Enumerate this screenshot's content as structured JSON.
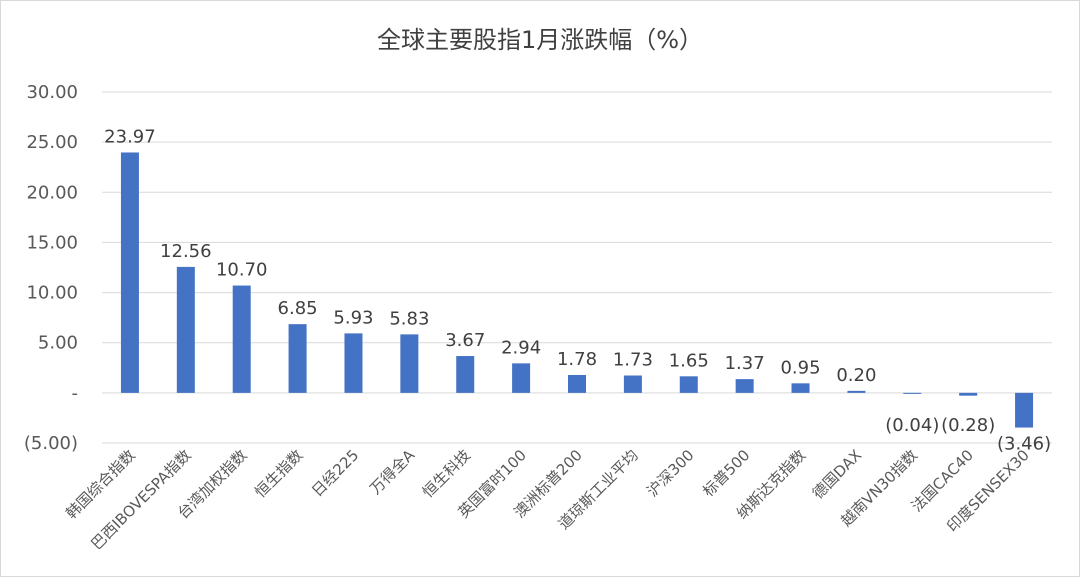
{
  "chart_data": {
    "type": "bar",
    "title": "全球主要股指1月涨跌幅（%）",
    "xlabel": "",
    "ylabel": "",
    "ylim": [
      -5,
      30
    ],
    "yticks": [
      {
        "value": 30,
        "label": "30.00"
      },
      {
        "value": 25,
        "label": "25.00"
      },
      {
        "value": 20,
        "label": "20.00"
      },
      {
        "value": 15,
        "label": "15.00"
      },
      {
        "value": 10,
        "label": "10.00"
      },
      {
        "value": 5,
        "label": "5.00"
      },
      {
        "value": 0,
        "label": "-"
      },
      {
        "value": -5,
        "label": "(5.00)"
      }
    ],
    "grid": true,
    "legend": "none",
    "bar_color": "#4472c4",
    "categories": [
      "韩国综合指数",
      "巴西IBOVESPA指数",
      "台湾加权指数",
      "恒生指数",
      "日经225",
      "万得全A",
      "恒生科技",
      "英国富时100",
      "澳洲标普200",
      "道琼斯工业平均",
      "沪深300",
      "标普500",
      "纳斯达克指数",
      "德国DAX",
      "越南VN30指数",
      "法国CAC40",
      "印度SENSEX30"
    ],
    "values": [
      23.97,
      12.56,
      10.7,
      6.85,
      5.93,
      5.83,
      3.67,
      2.94,
      1.78,
      1.73,
      1.65,
      1.37,
      0.95,
      0.2,
      -0.04,
      -0.28,
      -3.46
    ],
    "data_labels": [
      "23.97",
      "12.56",
      "10.70",
      "6.85",
      "5.93",
      "5.83",
      "3.67",
      "2.94",
      "1.78",
      "1.73",
      "1.65",
      "1.37",
      "0.95",
      "0.20",
      "(0.04)",
      "(0.28)",
      "(3.46)"
    ]
  }
}
